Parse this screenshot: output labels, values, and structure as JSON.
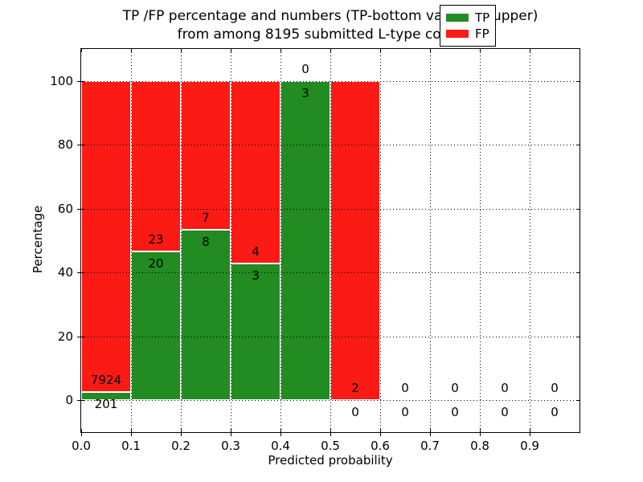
{
  "figure": {
    "title_line1": "TP /FP percentage and numbers (TP-bottom value, FP-upper)",
    "title_line2": "from among 8195 submitted L-type contacts"
  },
  "chart_data": {
    "type": "bar",
    "stacked": true,
    "normalized_to_percent": 100,
    "title": "TP /FP percentage and numbers (TP-bottom value, FP-upper) from among 8195 submitted L-type contacts",
    "xlabel": "Predicted probability",
    "ylabel": "Percentage",
    "xlim": [
      0.0,
      1.0
    ],
    "ylim": [
      -10,
      110
    ],
    "x_ticks": [
      "0.0",
      "0.1",
      "0.2",
      "0.3",
      "0.4",
      "0.5",
      "0.6",
      "0.7",
      "0.8",
      "0.9"
    ],
    "y_ticks": [
      0,
      20,
      40,
      60,
      80,
      100
    ],
    "grid": "dotted",
    "bin_width": 0.1,
    "total_contacts": 8195,
    "legend_position": "upper right",
    "legend_entries": [
      {
        "label": "TP",
        "color": "#228b22"
      },
      {
        "label": "FP",
        "color": "#fc1a15"
      }
    ],
    "bins": [
      {
        "x_start": 0.0,
        "x_end": 0.1,
        "tp": 201,
        "fp": 7924,
        "tp_pct": 2.47,
        "fp_pct": 97.53
      },
      {
        "x_start": 0.1,
        "x_end": 0.2,
        "tp": 20,
        "fp": 23,
        "tp_pct": 46.51,
        "fp_pct": 53.49
      },
      {
        "x_start": 0.2,
        "x_end": 0.3,
        "tp": 8,
        "fp": 7,
        "tp_pct": 53.33,
        "fp_pct": 46.67
      },
      {
        "x_start": 0.3,
        "x_end": 0.4,
        "tp": 3,
        "fp": 4,
        "tp_pct": 42.86,
        "fp_pct": 57.14
      },
      {
        "x_start": 0.4,
        "x_end": 0.5,
        "tp": 3,
        "fp": 0,
        "tp_pct": 100,
        "fp_pct": 0
      },
      {
        "x_start": 0.5,
        "x_end": 0.6,
        "tp": 0,
        "fp": 2,
        "tp_pct": 0,
        "fp_pct": 100
      },
      {
        "x_start": 0.6,
        "x_end": 0.7,
        "tp": 0,
        "fp": 0,
        "tp_pct": 0,
        "fp_pct": 0
      },
      {
        "x_start": 0.7,
        "x_end": 0.8,
        "tp": 0,
        "fp": 0,
        "tp_pct": 0,
        "fp_pct": 0
      },
      {
        "x_start": 0.8,
        "x_end": 0.9,
        "tp": 0,
        "fp": 0,
        "tp_pct": 0,
        "fp_pct": 0
      },
      {
        "x_start": 0.9,
        "x_end": 1.0,
        "tp": 0,
        "fp": 0,
        "tp_pct": 0,
        "fp_pct": 0
      }
    ]
  }
}
